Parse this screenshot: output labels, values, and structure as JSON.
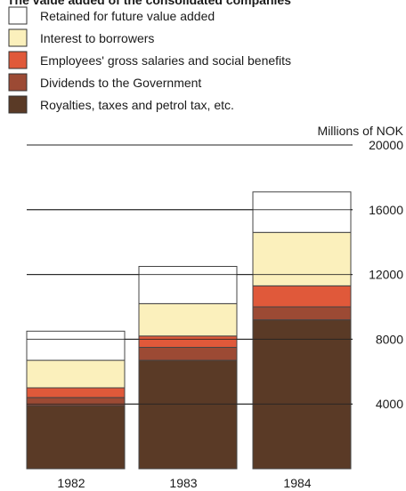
{
  "chart_data": {
    "type": "bar",
    "stacked": true,
    "title": "The value added of the consolidated companies",
    "unit_label": "Millions of NOK",
    "categories": [
      "1982",
      "1983",
      "1984"
    ],
    "ylim": [
      0,
      20000
    ],
    "yticks": [
      4000,
      8000,
      12000,
      16000,
      20000
    ],
    "ytick_labels": [
      "4000",
      "8000",
      "12000",
      "16000",
      "20000"
    ],
    "grid": true,
    "legend_position": "top",
    "series": [
      {
        "name": "Royalties, taxes and petrol tax, etc.",
        "color": "#5a3a26",
        "values": [
          3900,
          6700,
          9200
        ]
      },
      {
        "name": "Dividends to the Government",
        "color": "#9c4a34",
        "values": [
          500,
          800,
          800
        ]
      },
      {
        "name": "Employees' gross salaries and social benefits",
        "color": "#e0593a",
        "values": [
          600,
          700,
          1300
        ]
      },
      {
        "name": "Interest to borrowers",
        "color": "#fbf0bc",
        "values": [
          1700,
          2000,
          3300
        ]
      },
      {
        "name": "Retained for future value added",
        "color": "#ffffff",
        "values": [
          1800,
          2300,
          2500
        ]
      }
    ]
  }
}
